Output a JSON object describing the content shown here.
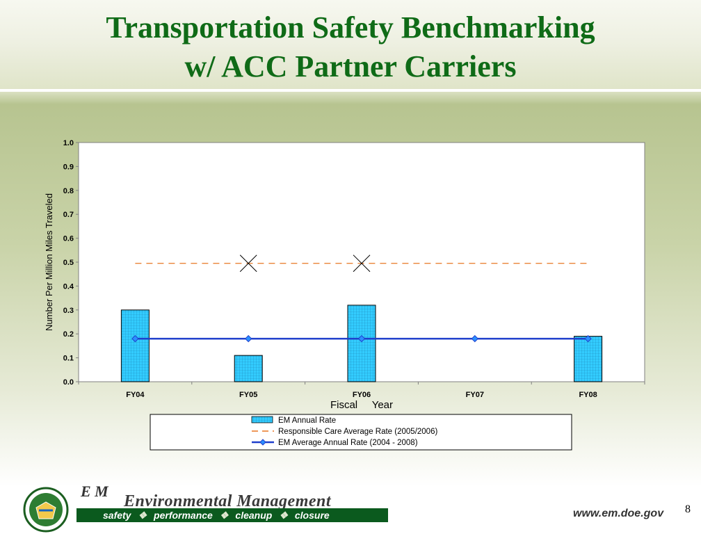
{
  "header": {
    "title_line1": "Transportation Safety Benchmarking",
    "title_line2": "w/ ACC Partner Carriers"
  },
  "chart_data": {
    "type": "bar",
    "categories": [
      "FY04",
      "FY05",
      "FY06",
      "FY07",
      "FY08"
    ],
    "xlabel": "Fiscal     Year",
    "ylabel": "Number Per Million Miles Traveled",
    "ylim": [
      0,
      1.0
    ],
    "yticks": [
      "0.0",
      "0.1",
      "0.2",
      "0.3",
      "0.4",
      "0.5",
      "0.6",
      "0.7",
      "0.8",
      "0.9",
      "1.0"
    ],
    "grid": false,
    "legend_position": "bottom",
    "series": [
      {
        "name": "EM Annual Rate",
        "kind": "bar",
        "values": [
          0.3,
          0.11,
          0.32,
          0,
          0.19
        ],
        "color": "#33ccff"
      },
      {
        "name": "Responsible Care Average Rate (2005/2006)",
        "kind": "dashed-line",
        "values": [
          0.495,
          0.495,
          0.495,
          0.495,
          0.495
        ],
        "markers_at": [
          "FY05",
          "FY06"
        ],
        "color": "#e87722"
      },
      {
        "name": "EM Average Annual Rate (2004 - 2008)",
        "kind": "line",
        "values": [
          0.18,
          0.18,
          0.18,
          0.18,
          0.18
        ],
        "color": "#1f3fcc"
      }
    ]
  },
  "footer": {
    "em_letters": "E M",
    "em_title": "Environmental Management",
    "motto": [
      "safety",
      "performance",
      "cleanup",
      "closure"
    ],
    "url": "www.em.doe.gov",
    "page_number": "8"
  }
}
